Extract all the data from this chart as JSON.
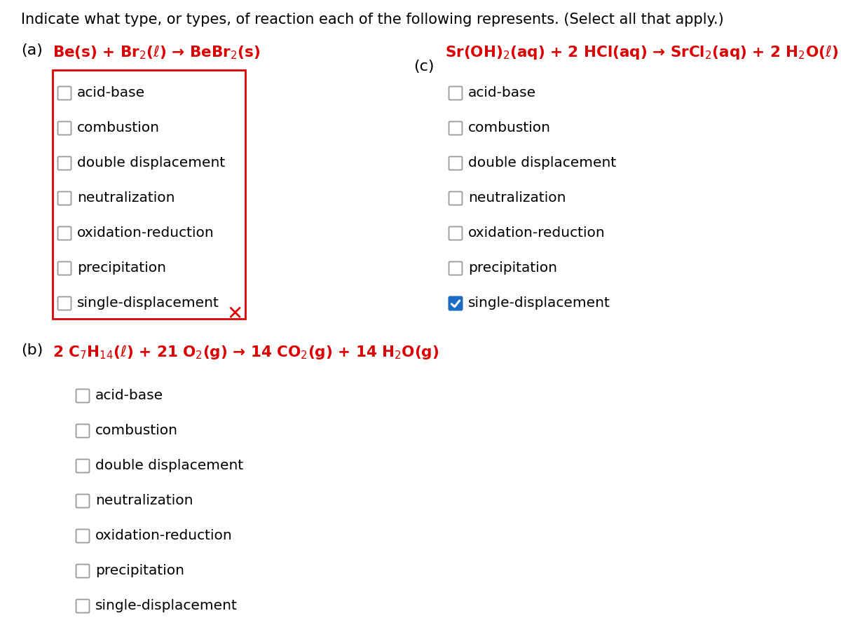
{
  "title": "Indicate what type, or types, of reaction each of the following represents. (Select all that apply.)",
  "title_color": "#000000",
  "title_fontsize": 15,
  "background_color": "#ffffff",
  "part_a_label": "(a)",
  "part_a_equation": "Be(s) + Br$_2$($\\ell$) → BeBr$_2$(s)",
  "part_a_eq_color": "#dd0000",
  "part_b_label": "(b)",
  "part_b_equation": "2 C$_7$H$_{14}$($\\ell$) + 21 O$_2$(g) → 14 CO$_2$(g) + 14 H$_2$O(g)",
  "part_b_eq_color": "#dd0000",
  "part_c_label": "(c)",
  "part_c_equation": "Sr(OH)$_2$(aq) + 2 HCl(aq) → SrCl$_2$(aq) + 2 H$_2$O($\\ell$)",
  "part_c_eq_color": "#dd0000",
  "options": [
    "acid-base",
    "combustion",
    "double displacement",
    "neutralization",
    "oxidation-reduction",
    "precipitation",
    "single-displacement"
  ],
  "part_a_checked": [],
  "part_b_checked": [],
  "part_c_checked": [
    "single-displacement"
  ],
  "check_color": "#1a6cc4",
  "box_border_color": "#999999",
  "section_border_color": "#dd0000",
  "x_color": "#dd0000",
  "text_color": "#000000",
  "text_fontsize": 14.5,
  "eq_fontsize": 15.5,
  "label_fontsize": 16
}
